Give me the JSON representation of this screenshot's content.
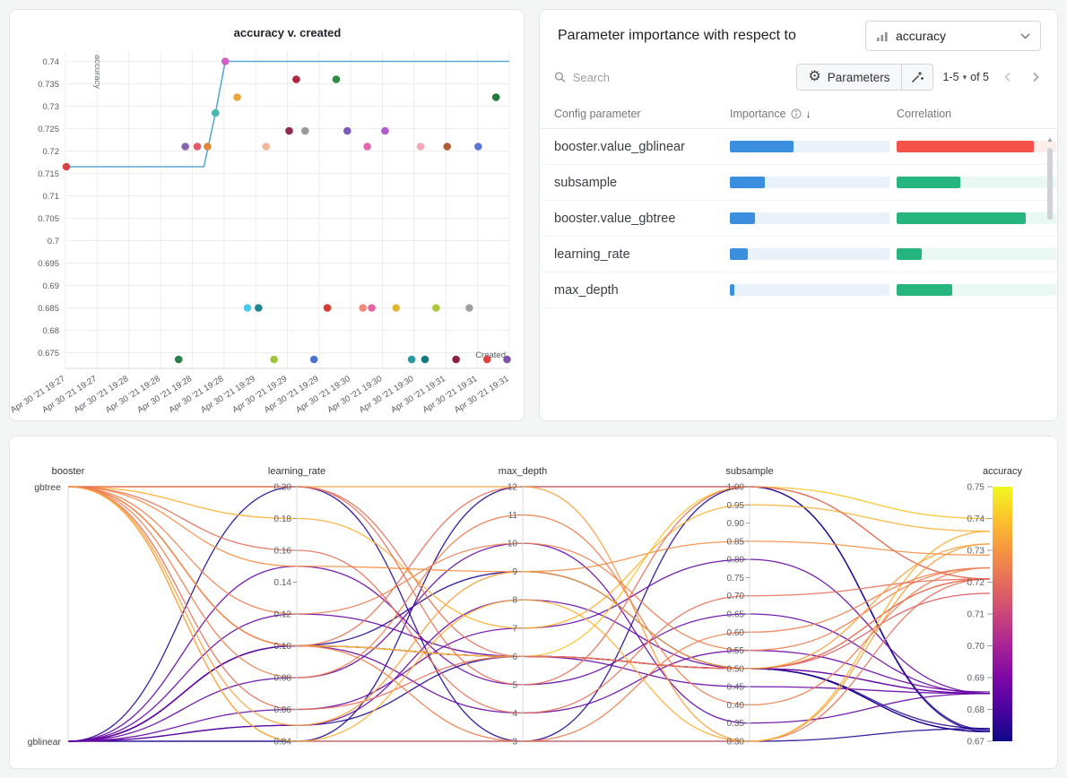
{
  "page": {
    "background": "#f4f5f5"
  },
  "importance": {
    "title": "Parameter importance with respect to",
    "metric": "accuracy",
    "search_placeholder": "Search",
    "parameters_label": "Parameters",
    "page_range": "1-5",
    "page_of": "of 5",
    "columns": [
      "Config parameter",
      "Importance",
      "Correlation"
    ],
    "accent_blue": "#3c8ede",
    "rows": [
      {
        "name": "booster.value_gblinear",
        "importance": 0.4,
        "correlation": 0.86,
        "correlation_color": "#f4524b",
        "correlation_track": "#fdeeec"
      },
      {
        "name": "subsample",
        "importance": 0.22,
        "correlation": 0.4,
        "correlation_color": "#27b57f",
        "correlation_track": "#e9f8f2"
      },
      {
        "name": "booster.value_gbtree",
        "importance": 0.16,
        "correlation": 0.81,
        "correlation_color": "#27b57f",
        "correlation_track": "#e9f8f2"
      },
      {
        "name": "learning_rate",
        "importance": 0.11,
        "correlation": 0.16,
        "correlation_color": "#27b57f",
        "correlation_track": "#e9f8f2"
      },
      {
        "name": "max_depth",
        "importance": 0.03,
        "correlation": 0.35,
        "correlation_color": "#27b57f",
        "correlation_track": "#e9f8f2"
      }
    ]
  },
  "chart_data": [
    {
      "type": "scatter",
      "title": "accuracy v. created",
      "xlabel": "Created",
      "ylabel": "accuracy",
      "x_unit": "fraction-of-axis",
      "ylim": [
        0.6715,
        0.7425
      ],
      "y_ticks": [
        "0.675",
        "0.68",
        "0.685",
        "0.69",
        "0.695",
        "0.7",
        "0.705",
        "0.71",
        "0.715",
        "0.72",
        "0.725",
        "0.73",
        "0.735",
        "0.74"
      ],
      "x_tick_labels": [
        "Apr 30 '21 19:27",
        "Apr 30 '21 19:27",
        "Apr 30 '21 19:28",
        "Apr 30 '21 19:28",
        "Apr 30 '21 19:28",
        "Apr 30 '21 19:28",
        "Apr 30 '21 19:29",
        "Apr 30 '21 19:29",
        "Apr 30 '21 19:29",
        "Apr 30 '21 19:30",
        "Apr 30 '21 19:30",
        "Apr 30 '21 19:30",
        "Apr 30 '21 19:31",
        "Apr 30 '21 19:31",
        "Apr 30 '21 19:31"
      ],
      "running_max_line": {
        "color": "#5aa9d2",
        "points": [
          [
            0,
            0.7165
          ],
          [
            0.312,
            0.7165
          ],
          [
            0.338,
            0.7285
          ],
          [
            0.36,
            0.74
          ],
          [
            1,
            0.74
          ]
        ]
      },
      "points": [
        {
          "x": 0.002,
          "y": 0.7165,
          "color": "#d64545"
        },
        {
          "x": 0.255,
          "y": 0.6735,
          "color": "#2d7d46"
        },
        {
          "x": 0.27,
          "y": 0.721,
          "color": "#8465b0"
        },
        {
          "x": 0.297,
          "y": 0.721,
          "color": "#e45a68"
        },
        {
          "x": 0.32,
          "y": 0.721,
          "color": "#e0873a"
        },
        {
          "x": 0.338,
          "y": 0.7285,
          "color": "#45b8b0"
        },
        {
          "x": 0.36,
          "y": 0.74,
          "color": "#cf62c4"
        },
        {
          "x": 0.387,
          "y": 0.732,
          "color": "#e8a838"
        },
        {
          "x": 0.41,
          "y": 0.685,
          "color": "#4ac8e8"
        },
        {
          "x": 0.435,
          "y": 0.685,
          "color": "#1e8890"
        },
        {
          "x": 0.452,
          "y": 0.721,
          "color": "#f0b49a"
        },
        {
          "x": 0.47,
          "y": 0.6735,
          "color": "#9dc53a"
        },
        {
          "x": 0.504,
          "y": 0.7245,
          "color": "#8e2a52"
        },
        {
          "x": 0.52,
          "y": 0.736,
          "color": "#b02540"
        },
        {
          "x": 0.54,
          "y": 0.7245,
          "color": "#999999"
        },
        {
          "x": 0.56,
          "y": 0.6735,
          "color": "#4a73d0"
        },
        {
          "x": 0.59,
          "y": 0.685,
          "color": "#d63a30"
        },
        {
          "x": 0.61,
          "y": 0.736,
          "color": "#2e8b4a"
        },
        {
          "x": 0.635,
          "y": 0.7245,
          "color": "#7a5cb8"
        },
        {
          "x": 0.67,
          "y": 0.685,
          "color": "#ef8878"
        },
        {
          "x": 0.68,
          "y": 0.721,
          "color": "#e268b0"
        },
        {
          "x": 0.69,
          "y": 0.685,
          "color": "#e862a8"
        },
        {
          "x": 0.72,
          "y": 0.7245,
          "color": "#b05ad0"
        },
        {
          "x": 0.745,
          "y": 0.685,
          "color": "#e0b838"
        },
        {
          "x": 0.78,
          "y": 0.6735,
          "color": "#2b9aa0"
        },
        {
          "x": 0.8,
          "y": 0.721,
          "color": "#f2a8b4"
        },
        {
          "x": 0.81,
          "y": 0.6735,
          "color": "#137a80"
        },
        {
          "x": 0.835,
          "y": 0.685,
          "color": "#aec83c"
        },
        {
          "x": 0.86,
          "y": 0.721,
          "color": "#b05c36"
        },
        {
          "x": 0.88,
          "y": 0.6735,
          "color": "#8e1f47"
        },
        {
          "x": 0.91,
          "y": 0.685,
          "color": "#a0a0a0"
        },
        {
          "x": 0.93,
          "y": 0.721,
          "color": "#5b78d6"
        },
        {
          "x": 0.95,
          "y": 0.6735,
          "color": "#e04040"
        },
        {
          "x": 0.97,
          "y": 0.732,
          "color": "#237a3c"
        },
        {
          "x": 0.995,
          "y": 0.6735,
          "color": "#7a52a8"
        }
      ]
    },
    {
      "type": "parallel-coordinates",
      "color_by": "accuracy",
      "colormap": "plasma",
      "axes": [
        {
          "name": "booster",
          "type": "categorical",
          "categories": [
            "gbtree",
            "gblinear"
          ]
        },
        {
          "name": "learning_rate",
          "type": "numeric",
          "min": 0.04,
          "max": 0.2,
          "ticks": [
            0.04,
            0.06,
            0.08,
            0.1,
            0.12,
            0.14,
            0.16,
            0.18,
            0.2
          ]
        },
        {
          "name": "max_depth",
          "type": "numeric",
          "min": 3,
          "max": 12,
          "ticks": [
            3,
            4,
            5,
            6,
            7,
            8,
            9,
            10,
            11,
            12
          ]
        },
        {
          "name": "subsample",
          "type": "numeric",
          "min": 0.3,
          "max": 1.0,
          "ticks": [
            0.3,
            0.35,
            0.4,
            0.45,
            0.5,
            0.55,
            0.6,
            0.65,
            0.7,
            0.75,
            0.8,
            0.85,
            0.9,
            0.95,
            1.0
          ]
        },
        {
          "name": "accuracy",
          "type": "numeric",
          "min": 0.67,
          "max": 0.75,
          "ticks": [
            0.67,
            0.68,
            0.69,
            0.7,
            0.71,
            0.72,
            0.73,
            0.74,
            0.75
          ]
        }
      ],
      "runs": [
        {
          "booster": "gblinear",
          "learning_rate": 0.1,
          "max_depth": 6,
          "subsample": 0.5,
          "accuracy": 0.673
        },
        {
          "booster": "gblinear",
          "learning_rate": 0.1,
          "max_depth": 6,
          "subsample": 0.5,
          "accuracy": 0.674
        },
        {
          "booster": "gblinear",
          "learning_rate": 0.05,
          "max_depth": 6,
          "subsample": 0.5,
          "accuracy": 0.673
        },
        {
          "booster": "gblinear",
          "learning_rate": 0.04,
          "max_depth": 12,
          "subsample": 1.0,
          "accuracy": 0.673
        },
        {
          "booster": "gblinear",
          "learning_rate": 0.2,
          "max_depth": 3,
          "subsample": 0.3,
          "accuracy": 0.674
        },
        {
          "booster": "gblinear",
          "learning_rate": 0.1,
          "max_depth": 9,
          "subsample": 0.5,
          "accuracy": 0.673
        },
        {
          "booster": "gblinear",
          "learning_rate": 0.04,
          "max_depth": 3,
          "subsample": 1.0,
          "accuracy": 0.6735
        },
        {
          "booster": "gblinear",
          "learning_rate": 0.12,
          "max_depth": 6,
          "subsample": 0.45,
          "accuracy": 0.685
        },
        {
          "booster": "gblinear",
          "learning_rate": 0.06,
          "max_depth": 7,
          "subsample": 0.8,
          "accuracy": 0.685
        },
        {
          "booster": "gblinear",
          "learning_rate": 0.1,
          "max_depth": 6,
          "subsample": 0.5,
          "accuracy": 0.685
        },
        {
          "booster": "gblinear",
          "learning_rate": 0.15,
          "max_depth": 5,
          "subsample": 0.65,
          "accuracy": 0.685
        },
        {
          "booster": "gblinear",
          "learning_rate": 0.08,
          "max_depth": 10,
          "subsample": 0.35,
          "accuracy": 0.685
        },
        {
          "booster": "gblinear",
          "learning_rate": 0.1,
          "max_depth": 4,
          "subsample": 0.55,
          "accuracy": 0.6855
        },
        {
          "booster": "gblinear",
          "learning_rate": 0.05,
          "max_depth": 8,
          "subsample": 0.5,
          "accuracy": 0.685
        },
        {
          "booster": "gbtree",
          "learning_rate": 0.1,
          "max_depth": 6,
          "subsample": 0.5,
          "accuracy": 0.7165
        },
        {
          "booster": "gbtree",
          "learning_rate": 0.2,
          "max_depth": 6,
          "subsample": 0.5,
          "accuracy": 0.721
        },
        {
          "booster": "gbtree",
          "learning_rate": 0.1,
          "max_depth": 12,
          "subsample": 1.0,
          "accuracy": 0.721
        },
        {
          "booster": "gbtree",
          "learning_rate": 0.04,
          "max_depth": 3,
          "subsample": 0.3,
          "accuracy": 0.721
        },
        {
          "booster": "gbtree",
          "learning_rate": 0.15,
          "max_depth": 9,
          "subsample": 0.85,
          "accuracy": 0.7285
        },
        {
          "booster": "gbtree",
          "learning_rate": 0.1,
          "max_depth": 6,
          "subsample": 1.0,
          "accuracy": 0.74
        },
        {
          "booster": "gbtree",
          "learning_rate": 0.2,
          "max_depth": 12,
          "subsample": 0.3,
          "accuracy": 0.732
        },
        {
          "booster": "gbtree",
          "learning_rate": 0.06,
          "max_depth": 6,
          "subsample": 0.5,
          "accuracy": 0.721
        },
        {
          "booster": "gbtree",
          "learning_rate": 0.1,
          "max_depth": 3,
          "subsample": 0.6,
          "accuracy": 0.7245
        },
        {
          "booster": "gbtree",
          "learning_rate": 0.18,
          "max_depth": 7,
          "subsample": 0.95,
          "accuracy": 0.736
        },
        {
          "booster": "gbtree",
          "learning_rate": 0.12,
          "max_depth": 10,
          "subsample": 0.55,
          "accuracy": 0.7245
        },
        {
          "booster": "gbtree",
          "learning_rate": 0.04,
          "max_depth": 8,
          "subsample": 0.3,
          "accuracy": 0.736
        },
        {
          "booster": "gbtree",
          "learning_rate": 0.16,
          "max_depth": 4,
          "subsample": 0.7,
          "accuracy": 0.721
        },
        {
          "booster": "gbtree",
          "learning_rate": 0.08,
          "max_depth": 11,
          "subsample": 0.4,
          "accuracy": 0.7245
        },
        {
          "booster": "gbtree",
          "learning_rate": 0.2,
          "max_depth": 5,
          "subsample": 1.0,
          "accuracy": 0.721
        },
        {
          "booster": "gbtree",
          "learning_rate": 0.05,
          "max_depth": 9,
          "subsample": 0.5,
          "accuracy": 0.732
        }
      ]
    }
  ]
}
